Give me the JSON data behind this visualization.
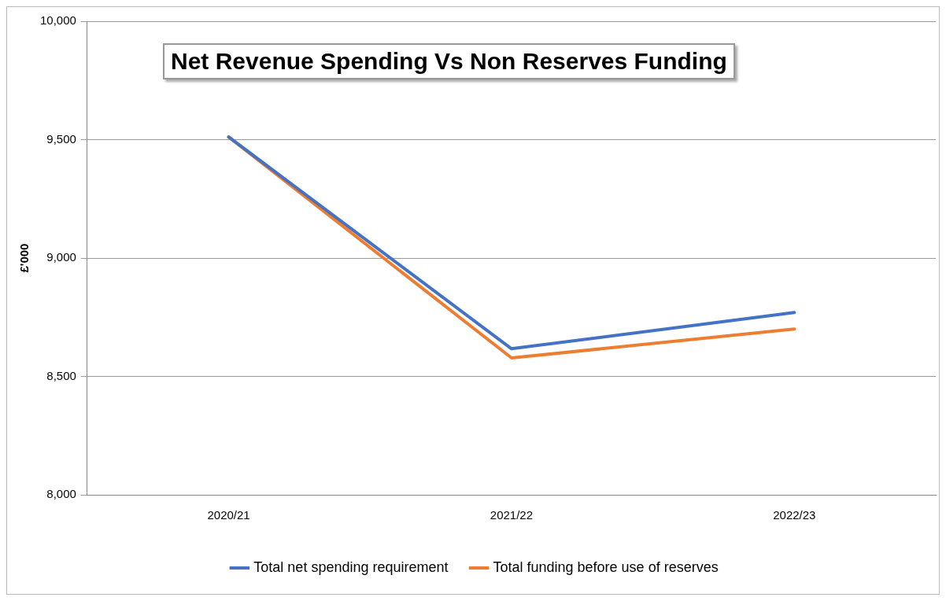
{
  "chart_data": {
    "type": "line",
    "title": "Net Revenue Spending Vs Non Reserves Funding",
    "ylabel": "£'000",
    "categories": [
      "2020/21",
      "2021/22",
      "2022/23"
    ],
    "series": [
      {
        "name": "Total net spending requirement",
        "color": "#4472c4",
        "values": [
          9511,
          8617,
          8770
        ]
      },
      {
        "name": "Total funding before use of reserves",
        "color": "#ed7d31",
        "values": [
          9511,
          8578,
          8700
        ]
      }
    ],
    "ylim": [
      8000,
      10000
    ],
    "yticks": [
      {
        "value": 8000,
        "label": "8,000"
      },
      {
        "value": 8500,
        "label": "8,500"
      },
      {
        "value": 9000,
        "label": "9,000"
      },
      {
        "value": 9500,
        "label": "9,500"
      },
      {
        "value": 10000,
        "label": "10,000"
      }
    ],
    "grid": "y",
    "legend": "bottom",
    "marker": "none",
    "line_style": "solid"
  }
}
